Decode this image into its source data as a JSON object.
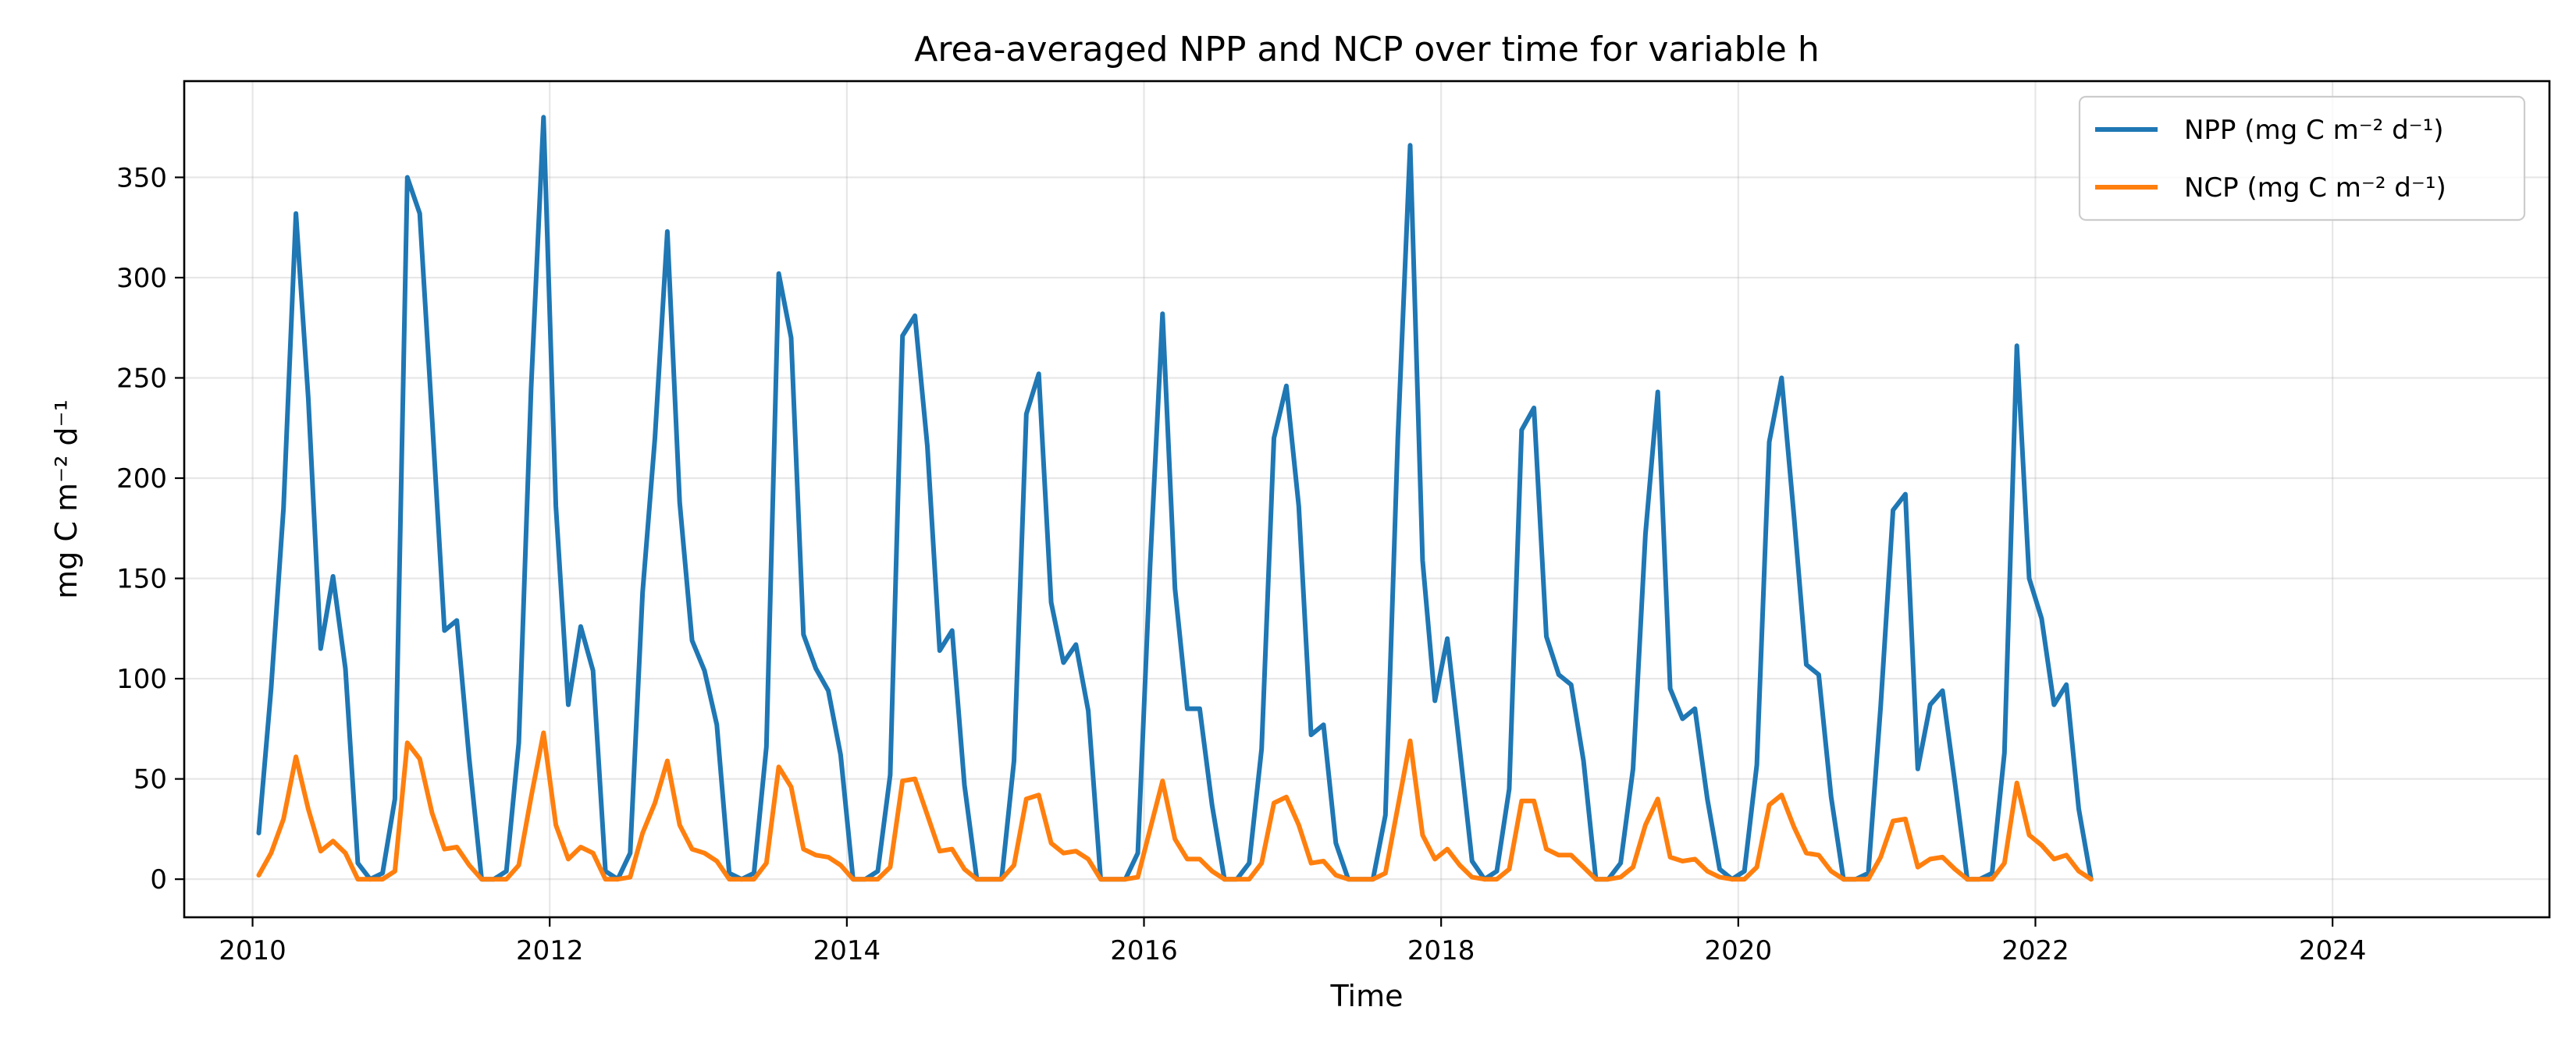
{
  "chart_data": {
    "type": "line",
    "title": "Area-averaged NPP and NCP over time for variable h",
    "xlabel": "Time",
    "ylabel": "mg C m⁻² d⁻¹",
    "xlim": [
      2009.54,
      2025.46
    ],
    "ylim": [
      -19,
      398
    ],
    "x_ticks": [
      2010,
      2012,
      2014,
      2016,
      2018,
      2020,
      2022,
      2024
    ],
    "y_ticks": [
      0,
      50,
      100,
      150,
      200,
      250,
      300,
      350
    ],
    "grid": true,
    "legend_position": "upper right",
    "start_year": 2010,
    "series": [
      {
        "name": "NPP (mg C m⁻² d⁻¹)",
        "color": "#1f77b4",
        "values": [
          23,
          95,
          185,
          332,
          240,
          115,
          151,
          105,
          8,
          0,
          3,
          40,
          350,
          332,
          230,
          124,
          129,
          60,
          0,
          0,
          4,
          68,
          245,
          380,
          186,
          87,
          126,
          104,
          4,
          0,
          13,
          143,
          220,
          323,
          188,
          119,
          104,
          77,
          3,
          0,
          3,
          66,
          302,
          270,
          122,
          105,
          94,
          62,
          0,
          0,
          4,
          52,
          271,
          281,
          216,
          114,
          124,
          47,
          0,
          0,
          0,
          59,
          232,
          252,
          138,
          108,
          117,
          84,
          0,
          0,
          0,
          13,
          157,
          282,
          145,
          85,
          85,
          37,
          0,
          0,
          8,
          65,
          220,
          246,
          186,
          72,
          77,
          18,
          0,
          0,
          0,
          32,
          220,
          366,
          159,
          89,
          120,
          65,
          9,
          0,
          4,
          45,
          224,
          235,
          121,
          102,
          97,
          59,
          0,
          0,
          8,
          55,
          172,
          243,
          95,
          80,
          85,
          40,
          5,
          0,
          4,
          57,
          218,
          250,
          181,
          107,
          102,
          41,
          0,
          0,
          3,
          86,
          184,
          192,
          55,
          87,
          94,
          48,
          0,
          0,
          3,
          63,
          266,
          150,
          130,
          87,
          97,
          35,
          0
        ]
      },
      {
        "name": "NCP (mg C m⁻² d⁻¹)",
        "color": "#ff7f0e",
        "values": [
          2,
          13,
          30,
          61,
          35,
          14,
          19,
          13,
          0,
          0,
          0,
          4,
          68,
          60,
          33,
          15,
          16,
          7,
          0,
          0,
          0,
          7,
          41,
          73,
          27,
          10,
          16,
          13,
          0,
          0,
          1,
          23,
          38,
          59,
          27,
          15,
          13,
          9,
          0,
          0,
          0,
          8,
          56,
          46,
          15,
          12,
          11,
          7,
          0,
          0,
          0,
          6,
          49,
          50,
          32,
          14,
          15,
          5,
          0,
          0,
          0,
          7,
          40,
          42,
          18,
          13,
          14,
          10,
          0,
          0,
          0,
          1,
          25,
          49,
          20,
          10,
          10,
          4,
          0,
          0,
          0,
          8,
          38,
          41,
          27,
          8,
          9,
          2,
          0,
          0,
          0,
          3,
          36,
          69,
          22,
          10,
          15,
          7,
          1,
          0,
          0,
          5,
          39,
          39,
          15,
          12,
          12,
          6,
          0,
          0,
          1,
          6,
          27,
          40,
          11,
          9,
          10,
          4,
          1,
          0,
          0,
          6,
          37,
          42,
          26,
          13,
          12,
          4,
          0,
          0,
          0,
          11,
          29,
          30,
          6,
          10,
          11,
          5,
          0,
          0,
          0,
          8,
          48,
          22,
          17,
          10,
          12,
          4,
          0
        ]
      }
    ]
  }
}
